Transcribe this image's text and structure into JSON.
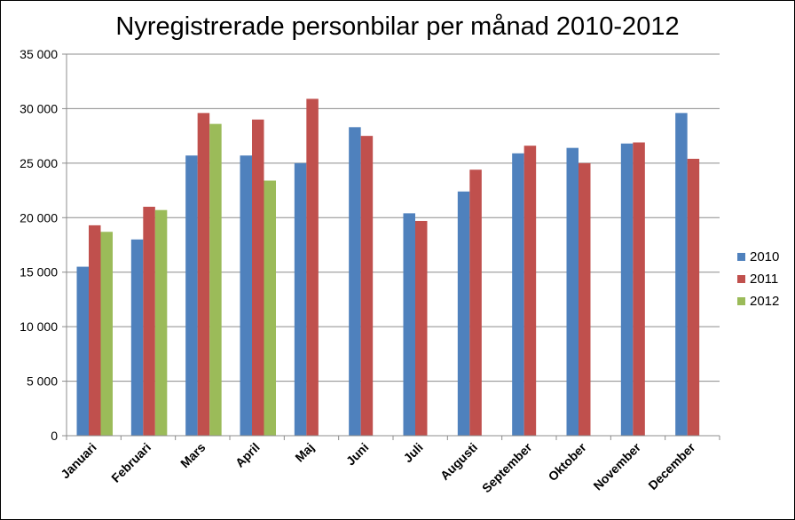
{
  "chart_data": {
    "type": "bar",
    "title": "Nyregistrerade personbilar per månad 2010-2012",
    "xlabel": "",
    "ylabel": "",
    "categories": [
      "Januari",
      "Februari",
      "Mars",
      "April",
      "Maj",
      "Juni",
      "Juli",
      "Augusti",
      "September",
      "Oktober",
      "November",
      "December"
    ],
    "series": [
      {
        "name": "2010",
        "color": "#4f81bd",
        "values": [
          15500,
          18000,
          25700,
          25700,
          25000,
          28300,
          20400,
          22400,
          25900,
          26400,
          26800,
          29600
        ]
      },
      {
        "name": "2011",
        "color": "#c0504d",
        "values": [
          19300,
          21000,
          29600,
          29000,
          30900,
          27500,
          19700,
          24400,
          26600,
          25000,
          26900,
          25400
        ]
      },
      {
        "name": "2012",
        "color": "#9bbb59",
        "values": [
          18700,
          20700,
          28600,
          23400,
          null,
          null,
          null,
          null,
          null,
          null,
          null,
          null
        ]
      }
    ],
    "ylim": [
      0,
      35000
    ],
    "yticks": [
      0,
      5000,
      10000,
      15000,
      20000,
      25000,
      30000,
      35000
    ],
    "ytick_labels": [
      "0",
      "5 000",
      "10 000",
      "15 000",
      "20 000",
      "25 000",
      "30 000",
      "35 000"
    ],
    "grid": true,
    "legend_position": "right"
  }
}
